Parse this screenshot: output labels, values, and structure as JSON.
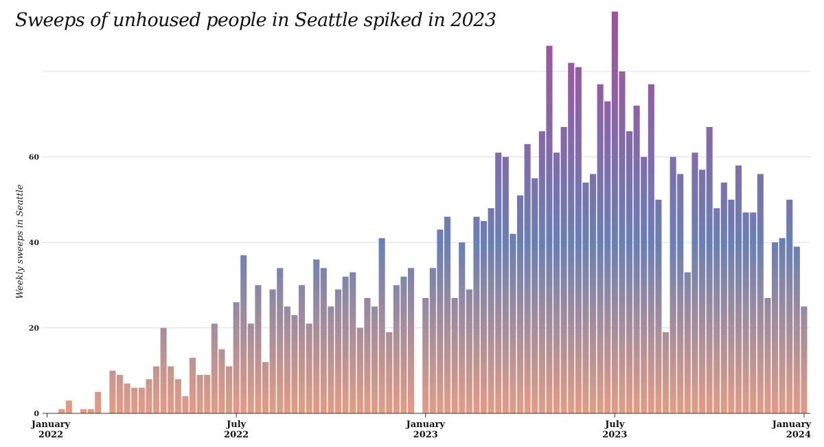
{
  "title": "Sweeps of unhoused people in Seattle spiked in 2023",
  "chart_data": {
    "type": "bar",
    "title": "Sweeps of unhoused people in Seattle spiked in 2023",
    "xlabel": "",
    "ylabel": "Weekly sweeps in Seattle",
    "ylim": [
      0,
      94
    ],
    "y_ticks": [
      "0",
      "20",
      "40",
      "60"
    ],
    "grid": true,
    "x_tick_labels": [
      {
        "line1": "January",
        "line2": "2022",
        "week_index": 0
      },
      {
        "line1": "July",
        "line2": "2022",
        "week_index": 26
      },
      {
        "line1": "January",
        "line2": "2023",
        "week_index": 52
      },
      {
        "line1": "July",
        "line2": "2023",
        "week_index": 78
      },
      {
        "line1": "January",
        "line2": "2024",
        "week_index": 104
      }
    ],
    "series": [
      {
        "name": "Weekly sweeps",
        "values": [
          0,
          0,
          1,
          3,
          0,
          1,
          1,
          5,
          0,
          10,
          9,
          7,
          6,
          6,
          8,
          11,
          20,
          11,
          8,
          4,
          13,
          9,
          9,
          21,
          15,
          11,
          26,
          37,
          21,
          30,
          12,
          29,
          34,
          25,
          23,
          30,
          21,
          36,
          34,
          25,
          29,
          32,
          33,
          20,
          27,
          25,
          41,
          19,
          30,
          32,
          34,
          0,
          27,
          34,
          43,
          46,
          27,
          40,
          29,
          46,
          45,
          48,
          61,
          60,
          42,
          51,
          63,
          55,
          66,
          86,
          61,
          67,
          82,
          81,
          54,
          56,
          77,
          73,
          94,
          80,
          66,
          72,
          60,
          77,
          50,
          19,
          60,
          56,
          33,
          61,
          57,
          67,
          48,
          54,
          50,
          58,
          47,
          47,
          56,
          27,
          40,
          41,
          50,
          39,
          25
        ]
      }
    ],
    "colors": {
      "low": "#e49c84",
      "mid": "#6a7fb3",
      "high": "#a44f9a"
    }
  }
}
